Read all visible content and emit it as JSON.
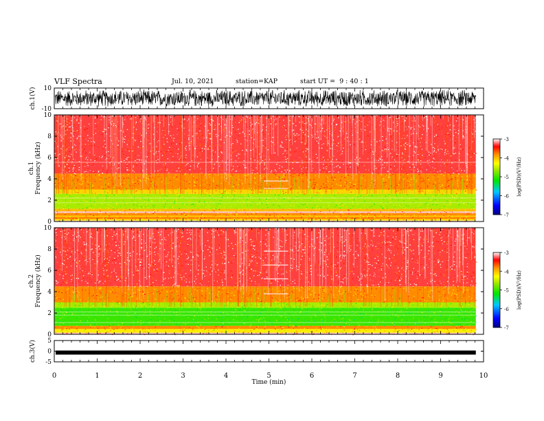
{
  "header": {
    "title": "VLF Spectra",
    "date": "Jul. 10, 2021",
    "station": "station=KAP",
    "start": "start UT =  9 : 40 : 1"
  },
  "chart_data": [
    {
      "type": "line",
      "name": "ch1-waveform",
      "ylabel": "ch.1(V)",
      "ylim": [
        -10,
        10
      ],
      "yticks": [
        "10",
        "-10"
      ],
      "x_range": [
        0,
        9.82
      ],
      "envelope": [
        -9,
        9
      ]
    },
    {
      "type": "heatmap",
      "name": "ch1-spectrogram",
      "ylabel": "ch.1 Frequency (kHz)",
      "xlim": [
        0,
        10
      ],
      "ylim": [
        0,
        10
      ],
      "yticks": [
        "0",
        "2",
        "4",
        "6",
        "8",
        "10"
      ],
      "data_extent_min": 9.82,
      "colorbar": {
        "label": "log(PSD)(V²/Hz)",
        "range": [
          -7,
          -3
        ],
        "ticks": [
          "-3",
          "-4",
          "-5",
          "-6",
          "-7"
        ]
      },
      "bands": [
        {
          "from_khz": 0,
          "to_khz": 0.1,
          "level": -3.1
        },
        {
          "from_khz": 0.1,
          "to_khz": 0.2,
          "level": -4.3
        },
        {
          "from_khz": 0.2,
          "to_khz": 0.45,
          "level": -3.8
        },
        {
          "from_khz": 0.45,
          "to_khz": 0.55,
          "level": -4.1
        },
        {
          "from_khz": 0.55,
          "to_khz": 0.8,
          "level": -3.8
        },
        {
          "from_khz": 0.8,
          "to_khz": 0.95,
          "level": -3.1
        },
        {
          "from_khz": 0.95,
          "to_khz": 1.2,
          "level": -4.0
        },
        {
          "from_khz": 1.2,
          "to_khz": 2.6,
          "level": -4.6
        },
        {
          "from_khz": 2.6,
          "to_khz": 3.0,
          "level": -4.1
        },
        {
          "from_khz": 3.0,
          "to_khz": 4.5,
          "level": -3.8
        },
        {
          "from_khz": 4.5,
          "to_khz": 10,
          "level": -3.3
        }
      ],
      "lines_khz": [
        5.55,
        2.2,
        1.75
      ],
      "gap_minutes": [
        4.88,
        5.45
      ],
      "gap_lines_khz": [
        3.8,
        3.1
      ]
    },
    {
      "type": "heatmap",
      "name": "ch2-spectrogram",
      "ylabel": "ch.2 Frequency (kHz)",
      "xlim": [
        0,
        10
      ],
      "ylim": [
        0,
        10
      ],
      "yticks": [
        "0",
        "2",
        "4",
        "6",
        "8",
        "10"
      ],
      "data_extent_min": 9.82,
      "colorbar": {
        "label": "log(PSD)(V²/Hz)",
        "range": [
          -7,
          -3
        ],
        "ticks": [
          "-3",
          "-4",
          "-5",
          "-6",
          "-7"
        ]
      },
      "bands": [
        {
          "from_khz": 0,
          "to_khz": 0.15,
          "level": -3.1
        },
        {
          "from_khz": 0.15,
          "to_khz": 0.5,
          "level": -4.2
        },
        {
          "from_khz": 0.5,
          "to_khz": 0.8,
          "level": -3.8
        },
        {
          "from_khz": 0.8,
          "to_khz": 2.5,
          "level": -5.0
        },
        {
          "from_khz": 2.5,
          "to_khz": 3.0,
          "level": -4.6
        },
        {
          "from_khz": 3.0,
          "to_khz": 4.5,
          "level": -3.8
        },
        {
          "from_khz": 4.5,
          "to_khz": 10,
          "level": -3.3
        }
      ],
      "lines_khz": [
        2.1,
        1.8,
        1.1
      ],
      "gap_minutes": [
        4.88,
        5.45
      ],
      "gap_lines_khz": [
        7.8,
        6.5,
        5.2,
        3.8
      ]
    },
    {
      "type": "line",
      "name": "ch3-waveform",
      "ylabel": "ch.3(V)",
      "ylim": [
        -5,
        5
      ],
      "yticks": [
        "5",
        "0",
        "-5"
      ],
      "x_range": [
        0,
        9.82
      ],
      "envelope": [
        -1.6,
        0.3
      ]
    }
  ],
  "xaxis": {
    "label": "Time (min)",
    "ticks": [
      "0",
      "1",
      "2",
      "3",
      "4",
      "5",
      "6",
      "7",
      "8",
      "9",
      "10"
    ],
    "range": [
      0,
      10
    ]
  }
}
